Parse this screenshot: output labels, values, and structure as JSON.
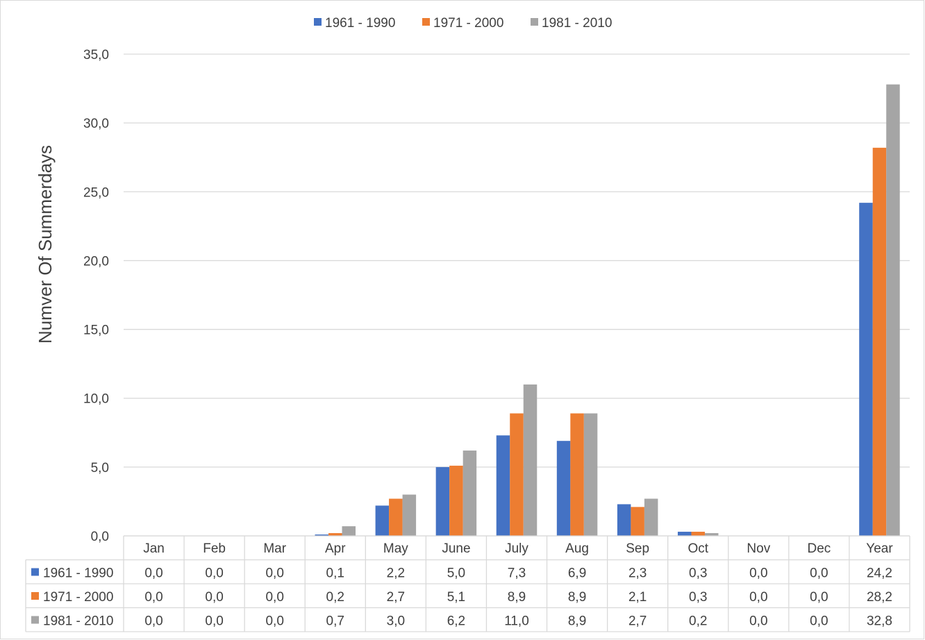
{
  "chart_data": {
    "type": "bar",
    "title": "",
    "xlabel": "",
    "ylabel": "Numver Of Summerdays",
    "ylim": [
      0,
      35
    ],
    "yticks": [
      "0,0",
      "5,0",
      "10,0",
      "15,0",
      "20,0",
      "25,0",
      "30,0",
      "35,0"
    ],
    "grid": true,
    "legend_position": "top",
    "data_table": true,
    "categories": [
      "Jan",
      "Feb",
      "Mar",
      "Apr",
      "May",
      "June",
      "July",
      "Aug",
      "Sep",
      "Oct",
      "Nov",
      "Dec",
      "Year"
    ],
    "series": [
      {
        "name": "1961 - 1990",
        "color": "#4472c4",
        "values": [
          0.0,
          0.0,
          0.0,
          0.1,
          2.2,
          5.0,
          7.3,
          6.9,
          2.3,
          0.3,
          0.0,
          0.0,
          24.2
        ],
        "labels": [
          "0,0",
          "0,0",
          "0,0",
          "0,1",
          "2,2",
          "5,0",
          "7,3",
          "6,9",
          "2,3",
          "0,3",
          "0,0",
          "0,0",
          "24,2"
        ]
      },
      {
        "name": "1971 - 2000",
        "color": "#ed7d31",
        "values": [
          0.0,
          0.0,
          0.0,
          0.2,
          2.7,
          5.1,
          8.9,
          8.9,
          2.1,
          0.3,
          0.0,
          0.0,
          28.2
        ],
        "labels": [
          "0,0",
          "0,0",
          "0,0",
          "0,2",
          "2,7",
          "5,1",
          "8,9",
          "8,9",
          "2,1",
          "0,3",
          "0,0",
          "0,0",
          "28,2"
        ]
      },
      {
        "name": "1981 - 2010",
        "color": "#a5a5a5",
        "values": [
          0.0,
          0.0,
          0.0,
          0.7,
          3.0,
          6.2,
          11.0,
          8.9,
          2.7,
          0.2,
          0.0,
          0.0,
          32.8
        ],
        "labels": [
          "0,0",
          "0,0",
          "0,0",
          "0,7",
          "3,0",
          "6,2",
          "11,0",
          "8,9",
          "2,7",
          "0,2",
          "0,0",
          "0,0",
          "32,8"
        ]
      }
    ]
  }
}
